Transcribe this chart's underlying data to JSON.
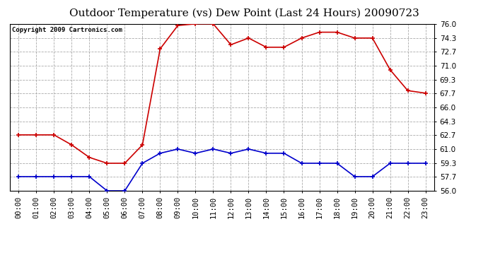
{
  "title": "Outdoor Temperature (vs) Dew Point (Last 24 Hours) 20090723",
  "copyright": "Copyright 2009 Cartronics.com",
  "hours": [
    "00:00",
    "01:00",
    "02:00",
    "03:00",
    "04:00",
    "05:00",
    "06:00",
    "07:00",
    "08:00",
    "09:00",
    "10:00",
    "11:00",
    "12:00",
    "13:00",
    "14:00",
    "15:00",
    "16:00",
    "17:00",
    "18:00",
    "19:00",
    "20:00",
    "21:00",
    "22:00",
    "23:00"
  ],
  "temp": [
    62.7,
    62.7,
    62.7,
    61.5,
    60.0,
    59.3,
    59.3,
    61.5,
    73.0,
    75.8,
    76.0,
    76.0,
    73.5,
    74.3,
    73.2,
    73.2,
    74.3,
    75.0,
    75.0,
    74.3,
    74.3,
    70.5,
    68.0,
    67.7
  ],
  "dew": [
    57.7,
    57.7,
    57.7,
    57.7,
    57.7,
    56.0,
    56.0,
    59.3,
    60.5,
    61.0,
    60.5,
    61.0,
    60.5,
    61.0,
    60.5,
    60.5,
    59.3,
    59.3,
    59.3,
    57.7,
    57.7,
    59.3,
    59.3,
    59.3
  ],
  "ylim": [
    56.0,
    76.0
  ],
  "yticks": [
    56.0,
    57.7,
    59.3,
    61.0,
    62.7,
    64.3,
    66.0,
    67.7,
    69.3,
    71.0,
    72.7,
    74.3,
    76.0
  ],
  "temp_color": "#cc0000",
  "dew_color": "#0000cc",
  "bg_color": "#ffffff",
  "grid_color": "#aaaaaa",
  "title_fontsize": 11,
  "copyright_fontsize": 6.5,
  "tick_fontsize": 7.5,
  "ytick_fontsize": 7.5
}
